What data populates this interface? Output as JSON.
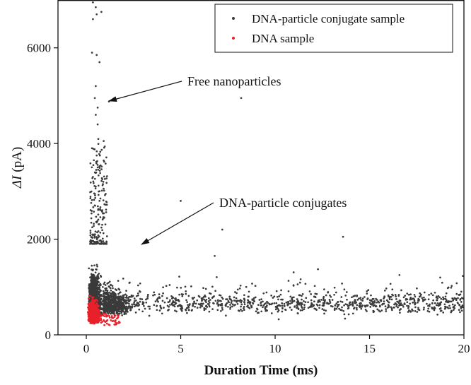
{
  "chart_data": {
    "type": "scatter",
    "xlabel": "Duration Time (ms)",
    "ylabel_symbol": "ΔI",
    "ylabel_unit": "(pA)",
    "xlim": [
      -1.5,
      20
    ],
    "ylim": [
      0,
      7000
    ],
    "xticks": [
      0,
      5,
      10,
      15,
      20
    ],
    "yticks": [
      0,
      2000,
      4000,
      6000
    ],
    "xtick_labels": [
      "0",
      "5",
      "10",
      "15",
      "20"
    ],
    "ytick_labels": [
      "0",
      "2000",
      "4000",
      "6000"
    ],
    "grid": false,
    "legend_position": "top-right",
    "series": [
      {
        "name": "DNA-particle conjugate sample",
        "color": "#3a3a3a",
        "point_estimate_count": 3200,
        "dense_region": {
          "duration_ms": [
            0.1,
            1.5
          ],
          "delta_I_pA": [
            200,
            1900
          ]
        },
        "tail_region": {
          "duration_ms": [
            1.5,
            20
          ],
          "delta_I_pA": [
            200,
            1300
          ]
        },
        "outliers": [
          [
            0.35,
            6950
          ],
          [
            0.5,
            6850
          ],
          [
            0.55,
            6700
          ],
          [
            0.8,
            6750
          ],
          [
            0.35,
            6600
          ],
          [
            0.3,
            5900
          ],
          [
            0.55,
            5850
          ],
          [
            0.7,
            5700
          ],
          [
            0.5,
            5200
          ],
          [
            1.2,
            4880
          ],
          [
            0.45,
            4950
          ],
          [
            0.6,
            4750
          ],
          [
            0.5,
            4600
          ],
          [
            0.6,
            4400
          ],
          [
            8.2,
            4950
          ],
          [
            0.3,
            3900
          ],
          [
            0.55,
            3750
          ],
          [
            0.4,
            3650
          ],
          [
            0.6,
            3500
          ],
          [
            0.35,
            3300
          ],
          [
            0.5,
            3100
          ],
          [
            0.45,
            2950
          ],
          [
            0.7,
            2800
          ],
          [
            5.0,
            2800
          ],
          [
            0.8,
            2600
          ],
          [
            0.95,
            2450
          ],
          [
            0.55,
            2350
          ],
          [
            7.2,
            2200
          ],
          [
            13.6,
            2050
          ],
          [
            6.8,
            1650
          ]
        ]
      },
      {
        "name": "DNA sample",
        "color": "#e8202a",
        "point_estimate_count": 900,
        "dense_region": {
          "duration_ms": [
            0.05,
            1.7
          ],
          "delta_I_pA": [
            150,
            1300
          ]
        }
      }
    ],
    "annotations": [
      {
        "text": "Free nanoparticles",
        "points_to": [
          1.2,
          4880
        ]
      },
      {
        "text": "DNA-particle conjugates",
        "points_to": [
          3.2,
          1900
        ]
      }
    ]
  }
}
